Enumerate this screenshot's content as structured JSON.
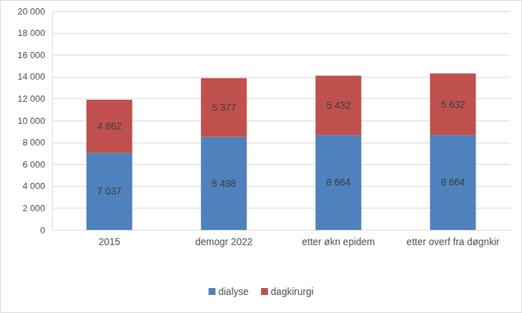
{
  "chart_data": {
    "type": "bar",
    "stacked": true,
    "data_labels": true,
    "grid": true,
    "legend": "bottom",
    "categories": [
      "2015",
      "demogr 2022",
      "etter økn epidem",
      "etter overf fra døgnkir"
    ],
    "series": [
      {
        "name": "dialyse",
        "color": "#4f81bd",
        "values": [
          7037,
          8498,
          8664,
          8664
        ],
        "value_labels": [
          "7 037",
          "8 498",
          "8 664",
          "8 664"
        ]
      },
      {
        "name": "dagkirurgi",
        "color": "#c0504d",
        "values": [
          4862,
          5377,
          5432,
          5632
        ],
        "value_labels": [
          "4 862",
          "5 377",
          "5 432",
          "5 632"
        ]
      }
    ],
    "ylim": [
      0,
      20000
    ],
    "yticks": [
      0,
      {
        "value": 2000,
        "label": "2 000"
      },
      {
        "value": 4000,
        "label": "4 000"
      },
      {
        "value": 6000,
        "label": "6 000"
      },
      {
        "value": 8000,
        "label": "8 000"
      },
      {
        "value": 10000,
        "label": "10 000"
      },
      {
        "value": 12000,
        "label": "12 000"
      },
      {
        "value": 14000,
        "label": "14 000"
      },
      {
        "value": 16000,
        "label": "16 000"
      },
      {
        "value": 18000,
        "label": "18 000"
      },
      {
        "value": 20000,
        "label": "20 000"
      }
    ]
  }
}
